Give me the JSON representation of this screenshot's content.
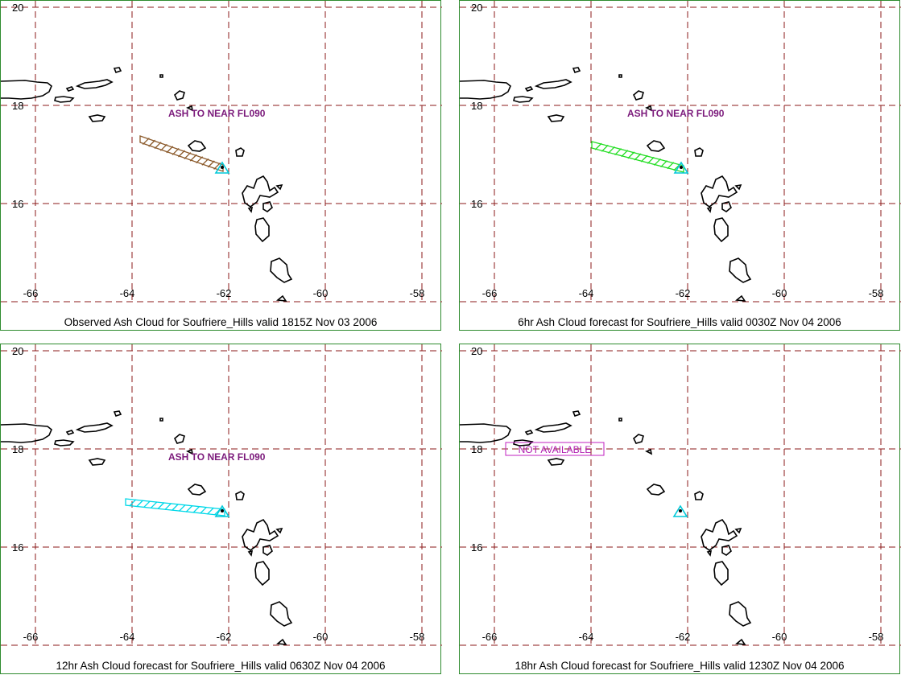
{
  "colors": {
    "grid": "#8b1a1a",
    "frame": "#2e8b2e",
    "coast": "#000000",
    "annotation": "#7b1a7b",
    "not_available": "#c020c0",
    "volcano": "#00c8d8",
    "observed_cloud": "#8b5a2b",
    "forecast_6hr_cloud": "#22dd22",
    "forecast_12hr_cloud": "#00d8e8"
  },
  "axes": {
    "lat_ticks": [
      "20",
      "18",
      "16"
    ],
    "lon_ticks": [
      "-66",
      "-64",
      "-62",
      "-60",
      "-58"
    ]
  },
  "panels": [
    {
      "caption": "Observed Ash Cloud for Soufriere_Hills valid 1815Z Nov 03 2006",
      "annotation": "ASH TO NEAR FL090",
      "cloud": "observed_cloud"
    },
    {
      "caption": "6hr Ash Cloud forecast for Soufriere_Hills valid 0030Z Nov 04 2006",
      "annotation": "ASH TO NEAR FL090",
      "cloud": "forecast_6hr_cloud"
    },
    {
      "caption": "12hr Ash Cloud forecast for Soufriere_Hills valid 0630Z Nov 04 2006",
      "annotation": "ASH TO NEAR FL090",
      "cloud": "forecast_12hr_cloud"
    },
    {
      "caption": "18hr Ash Cloud forecast for Soufriere_Hills valid 1230Z Nov 04 2006",
      "annotation": "NOT AVAILABLE",
      "cloud": ""
    }
  ]
}
